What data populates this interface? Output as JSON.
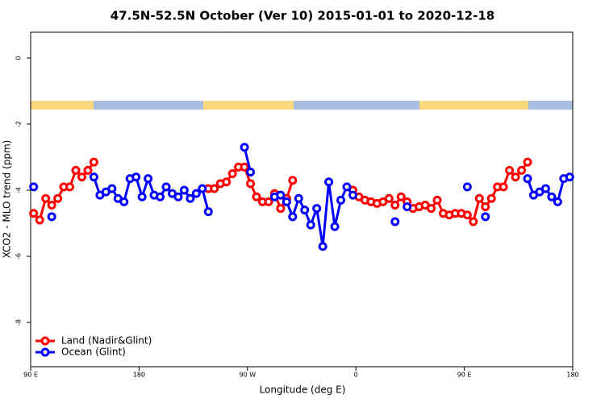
{
  "chart_data": {
    "type": "line",
    "title": "47.5N-52.5N October (Ver 10)   2015-01-01 to 2020-12-18",
    "x_label": "Longitude (deg E)",
    "y_label": "XCO2 - MLO trend (ppm)",
    "xlim": [
      90,
      540
    ],
    "ylim": [
      -9.34,
      0.78
    ],
    "xticks": [
      {
        "value": 90,
        "label": "90 E"
      },
      180,
      {
        "value": 270,
        "label": "90 W"
      },
      {
        "value": 360,
        "label": "0"
      },
      {
        "value": 450,
        "label": "90 E"
      },
      {
        "value": 540,
        "label": "180"
      }
    ],
    "yticks": [
      0,
      -2,
      -4,
      -6,
      -8
    ],
    "legend": "bottom-left",
    "x": [
      92.5,
      97.5,
      102.5,
      107.5,
      112.5,
      117.5,
      122.5,
      127.5,
      132.5,
      137.5,
      142.5,
      147.5,
      152.5,
      157.5,
      162.5,
      167.5,
      172.5,
      177.5,
      182.5,
      187.5,
      192.5,
      197.5,
      202.5,
      207.5,
      212.5,
      217.5,
      222.5,
      227.5,
      232.5,
      237.5,
      242.5,
      247.5,
      252.5,
      257.5,
      262.5,
      267.5,
      272.5,
      277.5,
      282.5,
      287.5,
      292.5,
      297.5,
      302.5,
      307.5,
      312.5,
      317.5,
      322.5,
      327.5,
      332.5,
      337.5,
      342.5,
      347.5,
      352.5,
      357.5,
      362.5,
      367.5,
      372.5,
      377.5,
      382.5,
      387.5,
      392.5,
      397.5,
      402.5,
      407.5,
      412.5,
      417.5,
      422.5,
      427.5,
      432.5,
      437.5,
      442.5,
      447.5,
      452.5,
      457.5,
      462.5,
      467.5,
      472.5,
      477.5,
      482.5,
      487.5,
      492.5,
      497.5,
      502.5,
      507.5,
      512.5,
      517.5,
      522.5,
      527.5,
      532.5,
      537.5
    ],
    "series": [
      {
        "name": "Land (Nadir&Glint)",
        "color": "#ff0000",
        "values": [
          -4.7,
          -4.9,
          -4.25,
          -4.45,
          -4.25,
          -3.9,
          -3.9,
          -3.4,
          -3.6,
          -3.4,
          -3.15,
          null,
          null,
          null,
          null,
          null,
          null,
          null,
          null,
          null,
          null,
          null,
          null,
          null,
          null,
          null,
          null,
          null,
          null,
          -3.95,
          -3.95,
          -3.8,
          -3.75,
          -3.5,
          -3.3,
          -3.3,
          -3.8,
          -4.2,
          -4.35,
          -4.35,
          -4.1,
          -4.55,
          -4.25,
          -3.7,
          null,
          null,
          null,
          null,
          null,
          null,
          null,
          null,
          null,
          -4.0,
          -4.2,
          -4.3,
          -4.35,
          -4.4,
          -4.35,
          -4.25,
          -4.45,
          -4.2,
          -4.35,
          -4.55,
          -4.5,
          -4.45,
          -4.55,
          -4.3,
          -4.7,
          -4.75,
          -4.7,
          -4.7,
          -4.75,
          -4.95,
          -4.25,
          -4.5,
          -4.25,
          -3.9,
          -3.9,
          -3.4,
          -3.6,
          -3.4,
          -3.15,
          null,
          null,
          null,
          null,
          null,
          null,
          null
        ]
      },
      {
        "name": "Ocean (Glint)",
        "color": "#0000ff",
        "values": [
          -3.9,
          null,
          null,
          -4.8,
          null,
          null,
          null,
          null,
          null,
          null,
          -3.6,
          -4.15,
          -4.05,
          -3.95,
          -4.25,
          -4.35,
          -3.65,
          -3.6,
          -4.2,
          -3.65,
          -4.15,
          -4.2,
          -3.9,
          -4.1,
          -4.2,
          -4.0,
          -4.25,
          -4.1,
          -3.95,
          -4.65,
          null,
          null,
          null,
          null,
          null,
          -2.7,
          -3.45,
          null,
          null,
          null,
          -4.2,
          -4.15,
          -4.35,
          -4.8,
          -4.25,
          -4.6,
          -5.05,
          -4.55,
          -5.7,
          -3.75,
          -5.1,
          -4.3,
          -3.9,
          -4.15,
          null,
          null,
          null,
          null,
          null,
          null,
          -4.95,
          null,
          -4.5,
          null,
          null,
          null,
          null,
          null,
          null,
          null,
          null,
          null,
          -3.9,
          null,
          null,
          -4.8,
          null,
          null,
          null,
          null,
          null,
          null,
          -3.65,
          -4.15,
          -4.05,
          -3.95,
          -4.2,
          -4.35,
          -3.65,
          -3.6
        ]
      }
    ]
  }
}
